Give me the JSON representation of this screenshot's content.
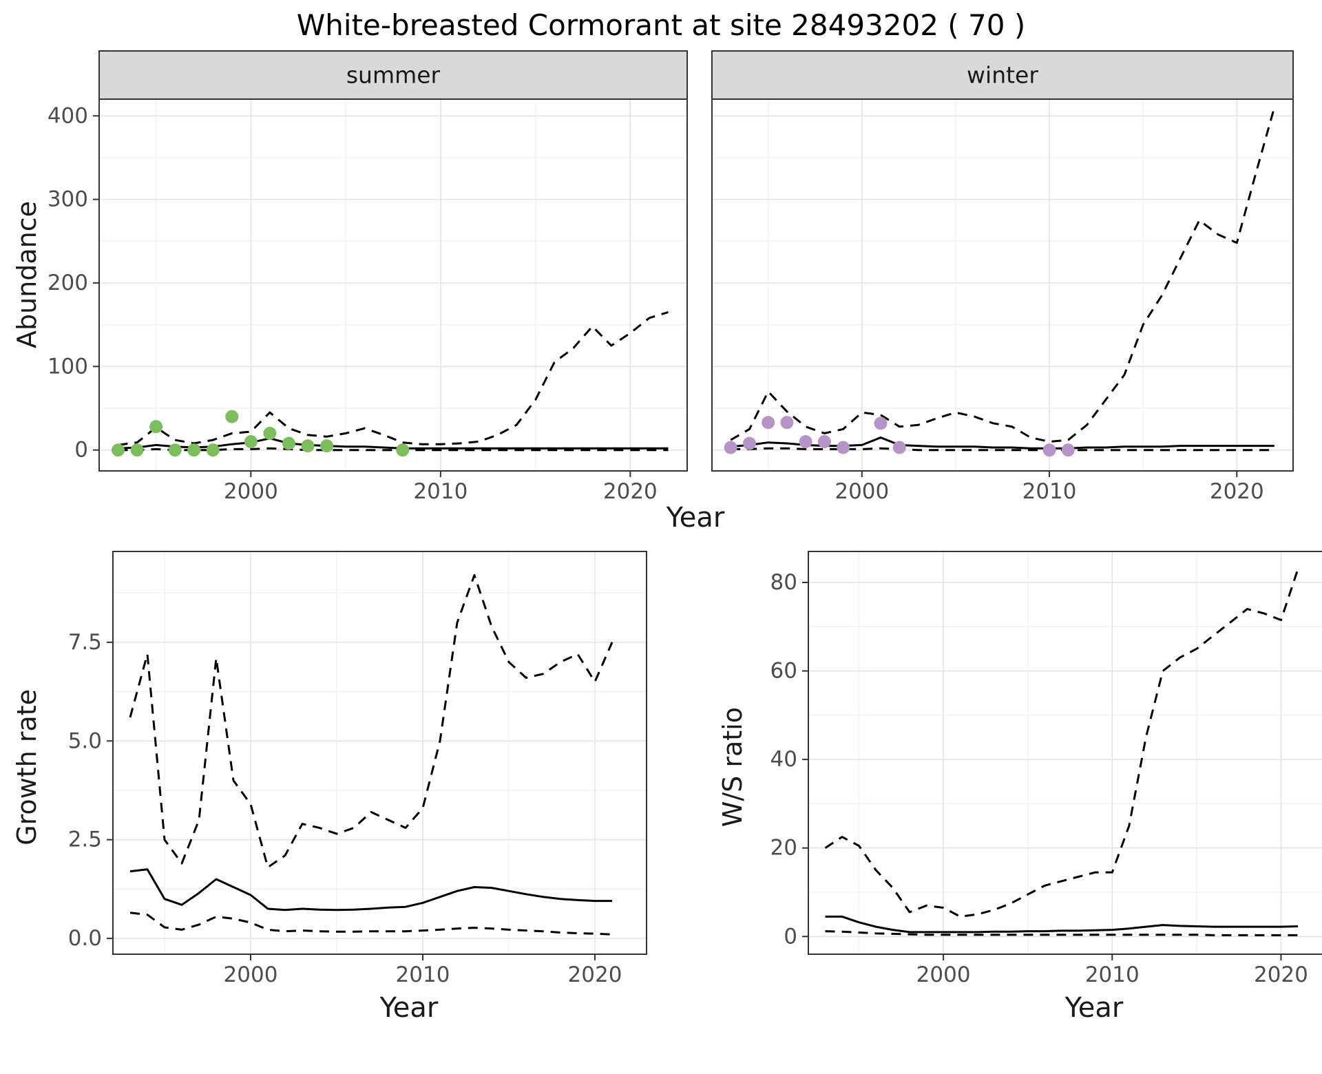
{
  "title": "White-breasted Cormorant at site 28493202 ( 70 )",
  "axes": {
    "abundance": "Abundance",
    "year_top": "Year",
    "growth_rate": "Growth rate",
    "year_growth": "Year",
    "ws_ratio": "W/S ratio",
    "year_ws": "Year"
  },
  "colors": {
    "line": "#000000",
    "summer_points": "#7CBE5C",
    "winter_points": "#B794C7",
    "strip_bg": "#D9D9D9",
    "strip_text": "#1A1A1A",
    "panel_border": "#333333",
    "grid_major": "#E4E4E4",
    "grid_minor": "#F2F2F2",
    "tick_text": "#4D4D4D"
  },
  "chart_data": [
    {
      "id": "abundance-summer",
      "type": "line",
      "facet": "summer",
      "xlabel": "Year",
      "ylabel": "Abundance",
      "xlim": [
        1992,
        2023
      ],
      "ylim": [
        -25,
        420
      ],
      "x_ticks": [
        2000,
        2010,
        2020
      ],
      "x_minor_ticks": [
        1995,
        2005,
        2015
      ],
      "y_ticks": [
        0,
        100,
        200,
        300,
        400
      ],
      "y_tick_labels": [
        "0",
        "100",
        "200",
        "300",
        "400"
      ],
      "y_minor_ticks": [
        50,
        150,
        250,
        350
      ],
      "x": [
        1993,
        1994,
        1995,
        1996,
        1997,
        1998,
        1999,
        2000,
        2001,
        2002,
        2003,
        2004,
        2005,
        2006,
        2007,
        2008,
        2009,
        2010,
        2011,
        2012,
        2013,
        2014,
        2015,
        2016,
        2017,
        2018,
        2019,
        2020,
        2021,
        2022
      ],
      "series": [
        {
          "name": "upper_ci",
          "style": "dashed",
          "values": [
            6,
            9,
            27,
            12,
            8,
            12,
            20,
            22,
            45,
            26,
            18,
            16,
            20,
            26,
            18,
            9,
            7,
            7,
            8,
            10,
            18,
            30,
            60,
            105,
            122,
            148,
            125,
            140,
            158,
            165
          ]
        },
        {
          "name": "median",
          "style": "solid",
          "values": [
            2,
            3,
            6,
            4,
            3,
            4,
            7,
            9,
            14,
            8,
            6,
            5,
            4,
            4,
            3,
            2,
            2,
            2,
            2,
            2,
            2,
            2,
            2,
            2,
            2,
            2,
            2,
            2,
            2,
            2
          ]
        },
        {
          "name": "lower_ci",
          "style": "dashed",
          "values": [
            0,
            0,
            1,
            0,
            0,
            0,
            1,
            1,
            2,
            1,
            0,
            0,
            0,
            0,
            0,
            0,
            0,
            0,
            0,
            0,
            0,
            0,
            0,
            0,
            0,
            0,
            0,
            0,
            0,
            0
          ]
        }
      ],
      "points": {
        "name": "observed-summer",
        "color": "#7CBE5C",
        "x": [
          1993,
          1994,
          1995,
          1996,
          1997,
          1998,
          1999,
          2000,
          2001,
          2002,
          2003,
          2004,
          2008
        ],
        "y": [
          0,
          0,
          28,
          0,
          0,
          0,
          40,
          10,
          20,
          8,
          5,
          5,
          0
        ]
      }
    },
    {
      "id": "abundance-winter",
      "type": "line",
      "facet": "winter",
      "xlabel": "Year",
      "ylabel": "Abundance",
      "xlim": [
        1992,
        2023
      ],
      "ylim": [
        -25,
        420
      ],
      "x_ticks": [
        2000,
        2010,
        2020
      ],
      "x_minor_ticks": [
        1995,
        2005,
        2015
      ],
      "y_ticks": [
        0,
        100,
        200,
        300,
        400
      ],
      "y_tick_labels": [
        "0",
        "100",
        "200",
        "300",
        "400"
      ],
      "y_minor_ticks": [
        50,
        150,
        250,
        350
      ],
      "x": [
        1993,
        1994,
        1995,
        1996,
        1997,
        1998,
        1999,
        2000,
        2001,
        2002,
        2003,
        2004,
        2005,
        2006,
        2007,
        2008,
        2009,
        2010,
        2011,
        2012,
        2013,
        2014,
        2015,
        2016,
        2017,
        2018,
        2019,
        2020,
        2021,
        2022
      ],
      "series": [
        {
          "name": "upper_ci",
          "style": "dashed",
          "values": [
            12,
            25,
            70,
            46,
            28,
            20,
            25,
            45,
            42,
            28,
            30,
            38,
            45,
            40,
            32,
            28,
            15,
            10,
            12,
            30,
            60,
            90,
            150,
            185,
            230,
            275,
            258,
            248,
            330,
            410
          ]
        },
        {
          "name": "median",
          "style": "solid",
          "values": [
            4,
            6,
            9,
            8,
            6,
            5,
            5,
            6,
            15,
            6,
            5,
            4,
            4,
            4,
            3,
            3,
            2,
            2,
            2,
            3,
            3,
            4,
            4,
            4,
            5,
            5,
            5,
            5,
            5,
            5
          ]
        },
        {
          "name": "lower_ci",
          "style": "dashed",
          "values": [
            1,
            1,
            2,
            2,
            1,
            1,
            1,
            1,
            2,
            1,
            0,
            0,
            0,
            0,
            0,
            0,
            0,
            0,
            0,
            0,
            0,
            0,
            0,
            0,
            0,
            0,
            0,
            0,
            0,
            0
          ]
        }
      ],
      "points": {
        "name": "observed-winter",
        "color": "#B794C7",
        "x": [
          1993,
          1994,
          1995,
          1996,
          1997,
          1998,
          1999,
          2001,
          2002,
          2010,
          2011
        ],
        "y": [
          3,
          8,
          33,
          33,
          10,
          10,
          3,
          32,
          3,
          0,
          0
        ]
      }
    },
    {
      "id": "growth-rate",
      "type": "line",
      "facet": null,
      "xlabel": "Year",
      "ylabel": "Growth rate",
      "xlim": [
        1992,
        2023
      ],
      "ylim": [
        -0.4,
        9.8
      ],
      "x_ticks": [
        2000,
        2010,
        2020
      ],
      "x_minor_ticks": [
        1995,
        2005,
        2015
      ],
      "y_ticks": [
        0,
        2.5,
        5,
        7.5
      ],
      "y_tick_labels": [
        "0.0",
        "2.5",
        "5.0",
        "7.5"
      ],
      "y_minor_ticks": [
        1.25,
        3.75,
        6.25,
        8.75
      ],
      "x": [
        1993,
        1994,
        1995,
        1996,
        1997,
        1998,
        1999,
        2000,
        2001,
        2002,
        2003,
        2004,
        2005,
        2006,
        2007,
        2008,
        2009,
        2010,
        2011,
        2012,
        2013,
        2014,
        2015,
        2016,
        2017,
        2018,
        2019,
        2020,
        2021
      ],
      "series": [
        {
          "name": "upper_ci",
          "style": "dashed",
          "values": [
            5.6,
            7.2,
            2.5,
            1.9,
            3.0,
            7.1,
            4.0,
            3.4,
            1.8,
            2.1,
            2.9,
            2.8,
            2.65,
            2.8,
            3.2,
            3.0,
            2.8,
            3.3,
            5.0,
            8.0,
            9.2,
            7.9,
            7.0,
            6.6,
            6.7,
            7.0,
            7.2,
            6.5,
            7.5
          ]
        },
        {
          "name": "median",
          "style": "solid",
          "values": [
            1.7,
            1.75,
            1.0,
            0.85,
            1.15,
            1.5,
            1.3,
            1.1,
            0.75,
            0.72,
            0.75,
            0.73,
            0.72,
            0.73,
            0.75,
            0.78,
            0.8,
            0.9,
            1.05,
            1.2,
            1.3,
            1.28,
            1.2,
            1.12,
            1.05,
            1.0,
            0.97,
            0.95,
            0.95
          ]
        },
        {
          "name": "lower_ci",
          "style": "dashed",
          "values": [
            0.65,
            0.6,
            0.28,
            0.22,
            0.35,
            0.55,
            0.5,
            0.4,
            0.22,
            0.18,
            0.2,
            0.18,
            0.17,
            0.17,
            0.18,
            0.18,
            0.18,
            0.2,
            0.22,
            0.25,
            0.27,
            0.25,
            0.22,
            0.2,
            0.18,
            0.15,
            0.13,
            0.12,
            0.1
          ]
        }
      ],
      "points": null
    },
    {
      "id": "ws-ratio",
      "type": "line",
      "facet": null,
      "xlabel": "Year",
      "ylabel": "W/S ratio",
      "xlim": [
        1992,
        2023
      ],
      "ylim": [
        -4,
        87
      ],
      "x_ticks": [
        2000,
        2010,
        2020
      ],
      "x_minor_ticks": [
        1995,
        2005,
        2015
      ],
      "y_ticks": [
        0,
        20,
        40,
        60,
        80
      ],
      "y_tick_labels": [
        "0",
        "20",
        "40",
        "60",
        "80"
      ],
      "y_minor_ticks": [
        10,
        30,
        50,
        70
      ],
      "x": [
        1993,
        1994,
        1995,
        1996,
        1997,
        1998,
        1999,
        2000,
        2001,
        2002,
        2003,
        2004,
        2005,
        2006,
        2007,
        2008,
        2009,
        2010,
        2011,
        2012,
        2013,
        2014,
        2015,
        2016,
        2017,
        2018,
        2019,
        2020,
        2021
      ],
      "series": [
        {
          "name": "upper_ci",
          "style": "dashed",
          "values": [
            20,
            22.5,
            20.5,
            15,
            11,
            5.5,
            7,
            6.5,
            4.5,
            5,
            6,
            7.5,
            9.5,
            11.5,
            12.5,
            13.5,
            14.5,
            14.5,
            25,
            45,
            60,
            63,
            65,
            68,
            71,
            74,
            73,
            71.5,
            83
          ]
        },
        {
          "name": "median",
          "style": "solid",
          "values": [
            4.5,
            4.5,
            3.2,
            2.2,
            1.5,
            1.0,
            1.0,
            1.0,
            1.0,
            1.0,
            1.1,
            1.1,
            1.2,
            1.2,
            1.3,
            1.3,
            1.4,
            1.5,
            1.8,
            2.2,
            2.6,
            2.4,
            2.3,
            2.2,
            2.2,
            2.2,
            2.2,
            2.2,
            2.3
          ]
        },
        {
          "name": "lower_ci",
          "style": "dashed",
          "values": [
            1.2,
            1.1,
            0.9,
            0.7,
            0.6,
            0.5,
            0.4,
            0.4,
            0.4,
            0.4,
            0.4,
            0.4,
            0.4,
            0.4,
            0.4,
            0.4,
            0.4,
            0.4,
            0.4,
            0.4,
            0.4,
            0.4,
            0.4,
            0.3,
            0.3,
            0.3,
            0.3,
            0.3,
            0.3
          ]
        }
      ],
      "points": null
    }
  ]
}
